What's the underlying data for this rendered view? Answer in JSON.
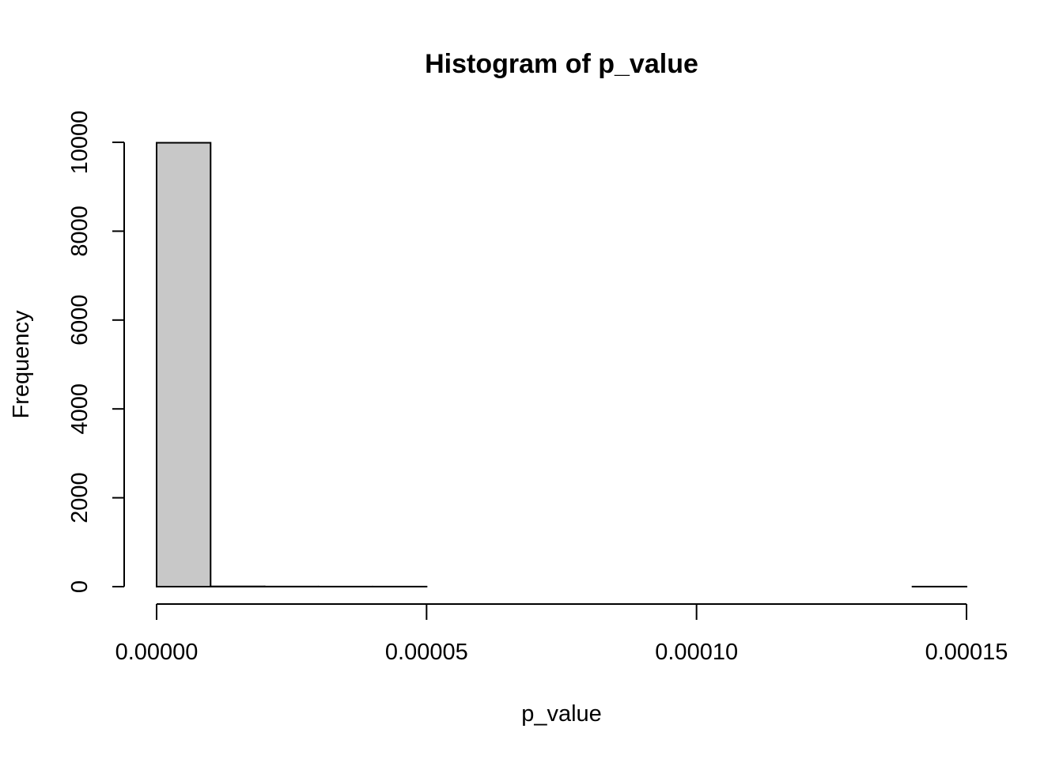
{
  "chart_data": {
    "type": "bar",
    "title": "Histogram of p_value",
    "xlabel": "p_value",
    "ylabel": "Frequency",
    "bar_fill": "#c8c8c8",
    "bins": [
      {
        "start": 0.0,
        "end": 1e-05,
        "count": 9990
      },
      {
        "start": 1e-05,
        "end": 2e-05,
        "count": 5
      },
      {
        "start": 2e-05,
        "end": 3e-05,
        "count": 2
      },
      {
        "start": 3e-05,
        "end": 4e-05,
        "count": 1
      },
      {
        "start": 4e-05,
        "end": 5e-05,
        "count": 1
      },
      {
        "start": 5e-05,
        "end": 6e-05,
        "count": 0
      },
      {
        "start": 6e-05,
        "end": 7e-05,
        "count": 0
      },
      {
        "start": 7e-05,
        "end": 8e-05,
        "count": 0
      },
      {
        "start": 8e-05,
        "end": 9e-05,
        "count": 0
      },
      {
        "start": 9e-05,
        "end": 0.0001,
        "count": 0
      },
      {
        "start": 0.0001,
        "end": 0.00011,
        "count": 0
      },
      {
        "start": 0.00011,
        "end": 0.00012,
        "count": 0
      },
      {
        "start": 0.00012,
        "end": 0.00013,
        "count": 0
      },
      {
        "start": 0.00013,
        "end": 0.00014,
        "count": 0
      },
      {
        "start": 0.00014,
        "end": 0.00015,
        "count": 1
      }
    ],
    "xlim": [
      0,
      0.00015
    ],
    "ylim": [
      0,
      10000
    ],
    "x_ticks": [
      0,
      5e-05,
      0.0001,
      0.00015
    ],
    "x_tick_labels": [
      "0.00000",
      "0.00005",
      "0.00010",
      "0.00015"
    ],
    "y_ticks": [
      0,
      2000,
      4000,
      6000,
      8000,
      10000
    ],
    "y_tick_labels": [
      "0",
      "2000",
      "4000",
      "6000",
      "8000",
      "10000"
    ],
    "grid": false,
    "legend": "none"
  }
}
